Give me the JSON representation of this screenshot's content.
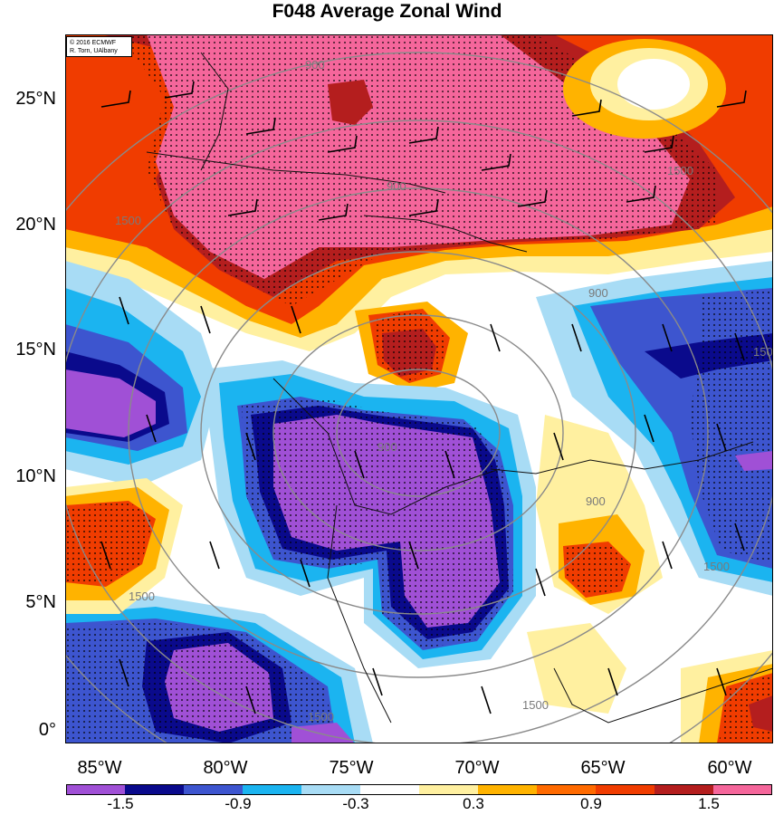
{
  "title": "F048 Average Zonal Wind",
  "credit": [
    "© 2016 ECMWF",
    "R. Torn, UAlbany"
  ],
  "map": {
    "lat_labels": [
      "25°N",
      "20°N",
      "15°N",
      "10°N",
      "5°N",
      "0°"
    ],
    "lon_labels": [
      "85°W",
      "80°W",
      "75°W",
      "70°W",
      "65°W",
      "60°W"
    ],
    "contour_labels": [
      "900",
      "900",
      "1500",
      "1500",
      "900",
      "900",
      "900",
      "1500",
      "1500",
      "1500",
      "1500",
      "1500"
    ]
  },
  "colorbar": {
    "colors": [
      "#a050d6",
      "#0a0a8c",
      "#3d55cf",
      "#1bb4f0",
      "#a8dcf5",
      "#ffffff",
      "#fff0a0",
      "#ffb300",
      "#ff6a00",
      "#f03c00",
      "#b41e1e",
      "#f5669b"
    ],
    "tick_labels": [
      "-1.5",
      "-0.9",
      "-0.3",
      "0.3",
      "0.9",
      "1.5"
    ]
  }
}
